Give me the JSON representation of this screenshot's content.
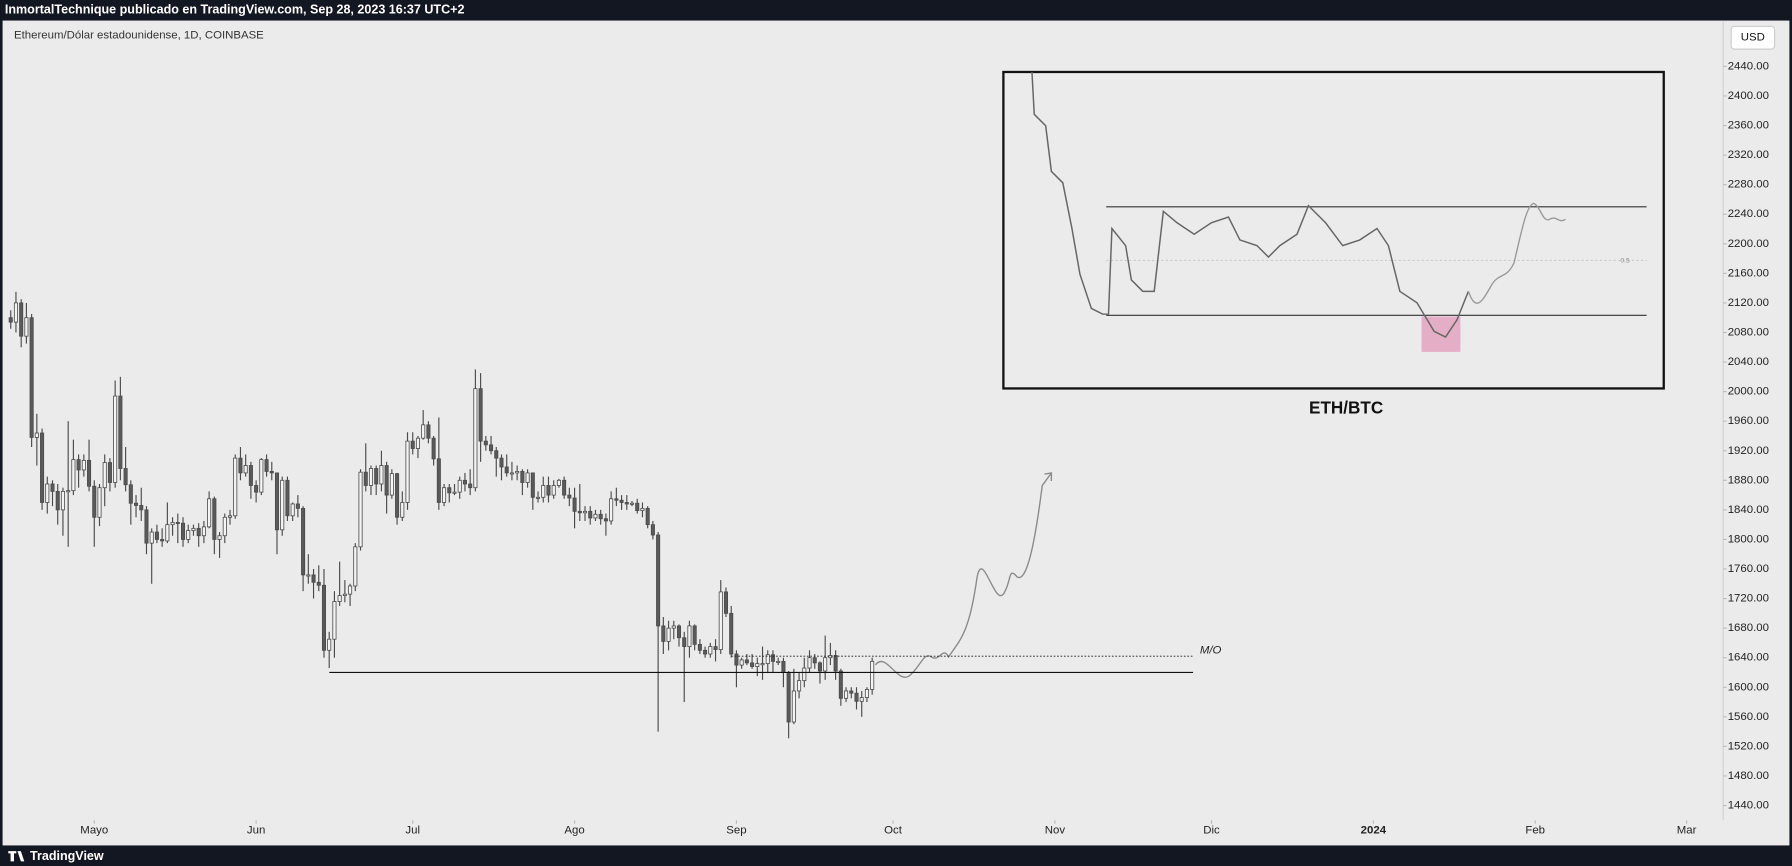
{
  "header": {
    "author_line": "InmortalTechnique publicado en TradingView.com, Sep 28, 2023 16:37 UTC+2",
    "footer": "TradingView"
  },
  "chart_data": {
    "type": "candlestick",
    "title": "Ethereum/Dólar estadounidense, 1D, COINBASE",
    "currency": "USD",
    "up_color": "#f4f4f4",
    "down_color": "#5a5a5a",
    "wick_color": "#4a4a4a",
    "xlim": [
      -2,
      328
    ],
    "xticks": [
      {
        "value": 16,
        "label": "Mayo"
      },
      {
        "value": 47,
        "label": "Jun"
      },
      {
        "value": 77,
        "label": "Jul"
      },
      {
        "value": 108,
        "label": "Ago"
      },
      {
        "value": 139,
        "label": "Sep"
      },
      {
        "value": 169,
        "label": "Oct"
      },
      {
        "value": 200,
        "label": "Nov"
      },
      {
        "value": 230,
        "label": "Dic"
      },
      {
        "value": 261,
        "label": "2024"
      },
      {
        "value": 292,
        "label": "Feb"
      },
      {
        "value": 321,
        "label": "Mar"
      }
    ],
    "ylim": [
      1420,
      2502
    ],
    "yticks": [
      {
        "value": 1440,
        "label": "1440.00"
      },
      {
        "value": 1480,
        "label": "1480.00"
      },
      {
        "value": 1520,
        "label": "1520.00"
      },
      {
        "value": 1560,
        "label": "1560.00"
      },
      {
        "value": 1600,
        "label": "1600.00"
      },
      {
        "value": 1640,
        "label": "1640.00"
      },
      {
        "value": 1680,
        "label": "1680.00"
      },
      {
        "value": 1720,
        "label": "1720.00"
      },
      {
        "value": 1760,
        "label": "1760.00"
      },
      {
        "value": 1800,
        "label": "1800.00"
      },
      {
        "value": 1840,
        "label": "1840.00"
      },
      {
        "value": 1880,
        "label": "1880.00"
      },
      {
        "value": 1920,
        "label": "1920.00"
      },
      {
        "value": 1960,
        "label": "1960.00"
      },
      {
        "value": 2000,
        "label": "2000.00"
      },
      {
        "value": 2040,
        "label": "2040.00"
      },
      {
        "value": 2080,
        "label": "2080.00"
      },
      {
        "value": 2120,
        "label": "2120.00"
      },
      {
        "value": 2160,
        "label": "2160.00"
      },
      {
        "value": 2200,
        "label": "2200.00"
      },
      {
        "value": 2240,
        "label": "2240.00"
      },
      {
        "value": 2280,
        "label": "2280.00"
      },
      {
        "value": 2320,
        "label": "2320.00"
      },
      {
        "value": 2360,
        "label": "2360.00"
      },
      {
        "value": 2400,
        "label": "2400.00"
      },
      {
        "value": 2440,
        "label": "2440.00"
      }
    ],
    "levels": [
      {
        "value": 1620
      },
      {
        "value": 1642,
        "label": "M/O"
      }
    ],
    "inset": {
      "title": "ETH/BTC",
      "mid_label": "0.5"
    },
    "ohlc": [
      [
        2100,
        2110,
        2085,
        2094
      ],
      [
        2094,
        2135,
        2080,
        2120
      ],
      [
        2120,
        2125,
        2060,
        2075
      ],
      [
        2075,
        2120,
        2065,
        2100
      ],
      [
        2100,
        2105,
        1925,
        1938
      ],
      [
        1938,
        1970,
        1900,
        1944
      ],
      [
        1944,
        1950,
        1840,
        1850
      ],
      [
        1850,
        1885,
        1835,
        1875
      ],
      [
        1875,
        1880,
        1845,
        1865
      ],
      [
        1865,
        1875,
        1820,
        1840
      ],
      [
        1840,
        1870,
        1805,
        1865
      ],
      [
        1865,
        1960,
        1790,
        1866
      ],
      [
        1866,
        1935,
        1860,
        1908
      ],
      [
        1908,
        1915,
        1870,
        1894
      ],
      [
        1894,
        1915,
        1885,
        1907
      ],
      [
        1907,
        1935,
        1865,
        1872
      ],
      [
        1872,
        1880,
        1790,
        1830
      ],
      [
        1830,
        1875,
        1818,
        1870
      ],
      [
        1870,
        1915,
        1845,
        1904
      ],
      [
        1904,
        1910,
        1865,
        1877
      ],
      [
        1877,
        2015,
        1870,
        1994
      ],
      [
        1994,
        2020,
        1880,
        1896
      ],
      [
        1896,
        1925,
        1865,
        1874
      ],
      [
        1874,
        1880,
        1820,
        1849
      ],
      [
        1849,
        1860,
        1830,
        1846
      ],
      [
        1846,
        1870,
        1825,
        1840
      ],
      [
        1840,
        1845,
        1780,
        1795
      ],
      [
        1795,
        1815,
        1740,
        1810
      ],
      [
        1810,
        1820,
        1795,
        1800
      ],
      [
        1800,
        1815,
        1790,
        1798
      ],
      [
        1798,
        1850,
        1795,
        1820
      ],
      [
        1820,
        1830,
        1805,
        1823
      ],
      [
        1823,
        1835,
        1795,
        1822
      ],
      [
        1822,
        1830,
        1790,
        1800
      ],
      [
        1800,
        1820,
        1795,
        1812
      ],
      [
        1812,
        1820,
        1805,
        1815
      ],
      [
        1815,
        1822,
        1790,
        1805
      ],
      [
        1805,
        1825,
        1795,
        1817
      ],
      [
        1817,
        1865,
        1815,
        1855
      ],
      [
        1855,
        1858,
        1780,
        1800
      ],
      [
        1800,
        1810,
        1775,
        1805
      ],
      [
        1805,
        1835,
        1795,
        1830
      ],
      [
        1830,
        1840,
        1820,
        1832
      ],
      [
        1832,
        1915,
        1828,
        1910
      ],
      [
        1910,
        1925,
        1880,
        1890
      ],
      [
        1890,
        1915,
        1885,
        1900
      ],
      [
        1900,
        1905,
        1855,
        1873
      ],
      [
        1873,
        1880,
        1850,
        1864
      ],
      [
        1864,
        1910,
        1860,
        1908
      ],
      [
        1908,
        1915,
        1885,
        1892
      ],
      [
        1892,
        1905,
        1880,
        1890
      ],
      [
        1890,
        1890,
        1780,
        1813
      ],
      [
        1813,
        1885,
        1805,
        1880
      ],
      [
        1880,
        1885,
        1825,
        1832
      ],
      [
        1832,
        1850,
        1825,
        1848
      ],
      [
        1848,
        1860,
        1830,
        1842
      ],
      [
        1842,
        1845,
        1730,
        1752
      ],
      [
        1752,
        1780,
        1740,
        1752
      ],
      [
        1752,
        1760,
        1720,
        1742
      ],
      [
        1742,
        1765,
        1730,
        1738
      ],
      [
        1738,
        1760,
        1640,
        1650
      ],
      [
        1650,
        1675,
        1626,
        1665
      ],
      [
        1665,
        1730,
        1640,
        1716
      ],
      [
        1716,
        1770,
        1710,
        1724
      ],
      [
        1724,
        1745,
        1715,
        1726
      ],
      [
        1726,
        1740,
        1710,
        1737
      ],
      [
        1737,
        1795,
        1730,
        1790
      ],
      [
        1790,
        1895,
        1785,
        1891
      ],
      [
        1891,
        1930,
        1865,
        1873
      ],
      [
        1873,
        1900,
        1860,
        1896
      ],
      [
        1896,
        1900,
        1860,
        1875
      ],
      [
        1875,
        1920,
        1865,
        1900
      ],
      [
        1900,
        1905,
        1835,
        1860
      ],
      [
        1860,
        1895,
        1855,
        1889
      ],
      [
        1889,
        1890,
        1820,
        1830
      ],
      [
        1830,
        1865,
        1825,
        1850
      ],
      [
        1850,
        1945,
        1840,
        1933
      ],
      [
        1933,
        1945,
        1915,
        1923
      ],
      [
        1923,
        1940,
        1910,
        1937
      ],
      [
        1937,
        1975,
        1935,
        1955
      ],
      [
        1955,
        1960,
        1930,
        1937
      ],
      [
        1937,
        1940,
        1900,
        1909
      ],
      [
        1909,
        1965,
        1840,
        1850
      ],
      [
        1850,
        1875,
        1845,
        1870
      ],
      [
        1870,
        1875,
        1850,
        1863
      ],
      [
        1863,
        1875,
        1860,
        1864
      ],
      [
        1864,
        1885,
        1855,
        1880
      ],
      [
        1880,
        1890,
        1865,
        1875
      ],
      [
        1875,
        1895,
        1860,
        1870
      ],
      [
        1870,
        2030,
        1865,
        2004
      ],
      [
        2004,
        2025,
        1905,
        1933
      ],
      [
        1933,
        1940,
        1920,
        1928
      ],
      [
        1928,
        1940,
        1915,
        1920
      ],
      [
        1920,
        1925,
        1885,
        1910
      ],
      [
        1910,
        1915,
        1880,
        1898
      ],
      [
        1898,
        1915,
        1885,
        1890
      ],
      [
        1890,
        1905,
        1880,
        1890
      ],
      [
        1890,
        1900,
        1880,
        1892
      ],
      [
        1892,
        1895,
        1860,
        1877
      ],
      [
        1877,
        1895,
        1870,
        1890
      ],
      [
        1890,
        1890,
        1840,
        1857
      ],
      [
        1857,
        1865,
        1850,
        1857
      ],
      [
        1857,
        1885,
        1850,
        1873
      ],
      [
        1873,
        1885,
        1850,
        1860
      ],
      [
        1860,
        1880,
        1855,
        1873
      ],
      [
        1873,
        1882,
        1870,
        1880
      ],
      [
        1880,
        1885,
        1855,
        1860
      ],
      [
        1860,
        1870,
        1845,
        1856
      ],
      [
        1856,
        1870,
        1815,
        1838
      ],
      [
        1838,
        1875,
        1825,
        1836
      ],
      [
        1836,
        1845,
        1825,
        1838
      ],
      [
        1838,
        1845,
        1820,
        1829
      ],
      [
        1829,
        1840,
        1825,
        1834
      ],
      [
        1834,
        1840,
        1820,
        1828
      ],
      [
        1828,
        1835,
        1805,
        1825
      ],
      [
        1825,
        1865,
        1820,
        1855
      ],
      [
        1855,
        1870,
        1845,
        1853
      ],
      [
        1853,
        1860,
        1840,
        1850
      ],
      [
        1850,
        1860,
        1840,
        1848
      ],
      [
        1848,
        1852,
        1845,
        1849
      ],
      [
        1849,
        1855,
        1835,
        1839
      ],
      [
        1839,
        1850,
        1830,
        1842
      ],
      [
        1842,
        1845,
        1815,
        1820
      ],
      [
        1820,
        1825,
        1800,
        1806
      ],
      [
        1806,
        1810,
        1540,
        1683
      ],
      [
        1683,
        1695,
        1645,
        1662
      ],
      [
        1662,
        1690,
        1650,
        1680
      ],
      [
        1680,
        1690,
        1665,
        1683
      ],
      [
        1683,
        1685,
        1655,
        1667
      ],
      [
        1667,
        1675,
        1580,
        1655
      ],
      [
        1655,
        1690,
        1640,
        1683
      ],
      [
        1683,
        1685,
        1650,
        1658
      ],
      [
        1658,
        1665,
        1645,
        1650
      ],
      [
        1650,
        1655,
        1640,
        1645
      ],
      [
        1645,
        1660,
        1640,
        1655
      ],
      [
        1655,
        1665,
        1635,
        1651
      ],
      [
        1651,
        1745,
        1645,
        1729
      ],
      [
        1729,
        1735,
        1695,
        1700
      ],
      [
        1700,
        1710,
        1640,
        1645
      ],
      [
        1645,
        1650,
        1600,
        1630
      ],
      [
        1630,
        1640,
        1625,
        1637
      ],
      [
        1637,
        1645,
        1630,
        1633
      ],
      [
        1633,
        1645,
        1625,
        1628
      ],
      [
        1628,
        1640,
        1615,
        1632
      ],
      [
        1632,
        1655,
        1610,
        1632
      ],
      [
        1632,
        1650,
        1620,
        1644
      ],
      [
        1644,
        1650,
        1620,
        1635
      ],
      [
        1635,
        1640,
        1630,
        1635
      ],
      [
        1635,
        1640,
        1600,
        1620
      ],
      [
        1620,
        1622,
        1531,
        1553
      ],
      [
        1553,
        1625,
        1550,
        1595
      ],
      [
        1595,
        1620,
        1585,
        1609
      ],
      [
        1609,
        1640,
        1600,
        1626
      ],
      [
        1626,
        1650,
        1620,
        1640
      ],
      [
        1640,
        1645,
        1625,
        1633
      ],
      [
        1633,
        1635,
        1605,
        1622
      ],
      [
        1622,
        1670,
        1610,
        1640
      ],
      [
        1640,
        1660,
        1630,
        1643
      ],
      [
        1643,
        1650,
        1610,
        1622
      ],
      [
        1622,
        1625,
        1575,
        1585
      ],
      [
        1585,
        1600,
        1580,
        1595
      ],
      [
        1595,
        1600,
        1585,
        1592
      ],
      [
        1592,
        1600,
        1570,
        1581
      ],
      [
        1581,
        1595,
        1560,
        1586
      ],
      [
        1586,
        1600,
        1580,
        1597
      ],
      [
        1597,
        1640,
        1590,
        1635
      ]
    ]
  }
}
